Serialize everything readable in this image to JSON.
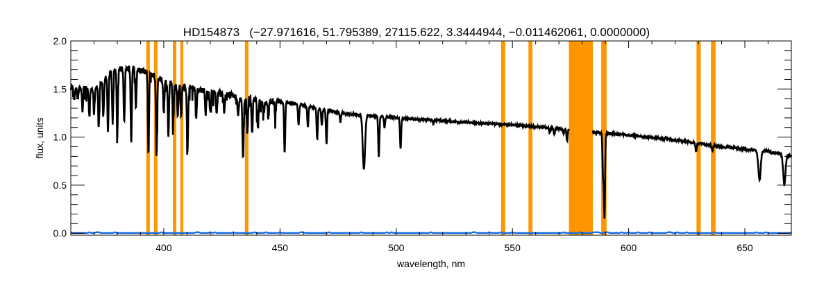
{
  "chart_data": {
    "type": "line",
    "title": "HD154873   (−27.971616, 51.795389, 27115.622, 3.3444944, −0.011462061, 0.0000000)",
    "xlabel": "wavelength, nm",
    "ylabel": "flux, units",
    "xlim": [
      360,
      670
    ],
    "ylim": [
      -0.02,
      2.0
    ],
    "xticks": [
      "400",
      "450",
      "500",
      "550",
      "600",
      "650"
    ],
    "yticks": [
      "0.0",
      "0.5",
      "1.0",
      "1.5",
      "2.0"
    ],
    "grid": false,
    "colors": {
      "spectrum": "#000000",
      "error": "#1a6fe0",
      "masked": "#ff9600"
    },
    "masked_regions": [
      [
        392.5,
        394.0
      ],
      [
        395.8,
        397.3
      ],
      [
        403.9,
        405.4
      ],
      [
        407.1,
        408.4
      ],
      [
        434.9,
        436.4
      ],
      [
        545.1,
        546.9
      ],
      [
        556.9,
        558.6
      ],
      [
        574.3,
        584.6
      ],
      [
        588.2,
        590.5
      ],
      [
        629.2,
        631.0
      ],
      [
        635.4,
        637.4
      ]
    ],
    "spectrum_gap": [
      574.5,
      584.5
    ],
    "continuum": [
      [
        360,
        1.52
      ],
      [
        365,
        1.51
      ],
      [
        370,
        1.5
      ],
      [
        374,
        1.58
      ],
      [
        378,
        1.7
      ],
      [
        385,
        1.72
      ],
      [
        390,
        1.7
      ],
      [
        395,
        1.65
      ],
      [
        400,
        1.58
      ],
      [
        405,
        1.55
      ],
      [
        410,
        1.52
      ],
      [
        420,
        1.47
      ],
      [
        430,
        1.43
      ],
      [
        434,
        1.38
      ],
      [
        437,
        1.41
      ],
      [
        442,
        1.36
      ],
      [
        450,
        1.37
      ],
      [
        460,
        1.33
      ],
      [
        470,
        1.28
      ],
      [
        480,
        1.24
      ],
      [
        490,
        1.22
      ],
      [
        500,
        1.2
      ],
      [
        520,
        1.17
      ],
      [
        540,
        1.14
      ],
      [
        560,
        1.11
      ],
      [
        574,
        1.08
      ],
      [
        585,
        1.05
      ],
      [
        600,
        1.02
      ],
      [
        620,
        0.97
      ],
      [
        640,
        0.9
      ],
      [
        660,
        0.85
      ],
      [
        670,
        0.8
      ]
    ],
    "absorption_lines": [
      [
        361.5,
        1.38
      ],
      [
        363,
        1.4
      ],
      [
        365,
        1.28
      ],
      [
        368,
        1.2
      ],
      [
        370,
        1.25
      ],
      [
        372,
        1.1
      ],
      [
        374,
        1.22
      ],
      [
        376,
        1.05
      ],
      [
        378,
        1.14
      ],
      [
        380,
        1.02
      ],
      [
        383,
        1.15
      ],
      [
        386,
        0.95
      ],
      [
        388,
        1.3
      ],
      [
        393.4,
        0.83
      ],
      [
        396.9,
        0.81
      ],
      [
        400,
        1.25
      ],
      [
        402,
        1.0
      ],
      [
        404,
        1.12
      ],
      [
        406,
        1.22
      ],
      [
        407.5,
        1.22
      ],
      [
        410.2,
        0.83
      ],
      [
        414,
        1.22
      ],
      [
        418,
        1.23
      ],
      [
        420,
        1.25
      ],
      [
        422.7,
        1.24
      ],
      [
        426,
        1.26
      ],
      [
        432,
        1.2
      ],
      [
        434.1,
        0.76
      ],
      [
        436,
        1.05
      ],
      [
        438,
        1.03
      ],
      [
        440.5,
        1.08
      ],
      [
        443,
        1.25
      ],
      [
        445,
        1.2
      ],
      [
        448,
        1.22
      ],
      [
        452,
        0.83
      ],
      [
        458,
        1.12
      ],
      [
        462,
        1.1
      ],
      [
        466,
        0.97
      ],
      [
        468,
        1.12
      ],
      [
        470,
        0.93
      ],
      [
        476,
        1.15
      ],
      [
        486.1,
        0.66
      ],
      [
        492.5,
        0.8
      ],
      [
        495,
        1.1
      ],
      [
        501.9,
        0.88
      ],
      [
        516,
        1.15
      ],
      [
        527,
        1.15
      ],
      [
        566,
        1.05
      ],
      [
        568,
        1.03
      ],
      [
        572,
        1.04
      ],
      [
        573.5,
        0.96
      ],
      [
        589.0,
        0.62
      ],
      [
        589.6,
        0.17
      ],
      [
        616,
        1.0
      ],
      [
        623,
        0.96
      ],
      [
        629,
        0.85
      ],
      [
        636,
        0.86
      ],
      [
        656.3,
        0.55
      ],
      [
        660,
        0.86
      ],
      [
        667,
        0.51
      ]
    ]
  }
}
